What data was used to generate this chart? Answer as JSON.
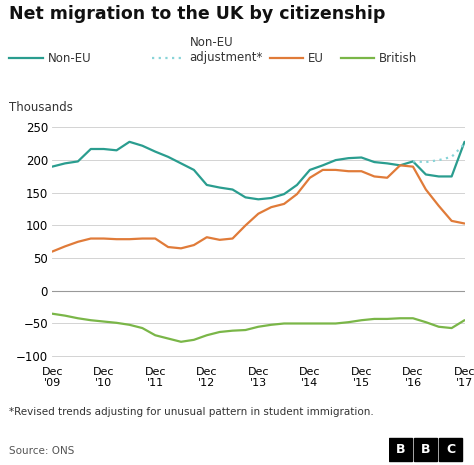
{
  "title": "Net migration to the UK by citizenship",
  "ylabel": "Thousands",
  "ylim": [
    -110,
    260
  ],
  "yticks": [
    -100,
    -50,
    0,
    50,
    100,
    150,
    200,
    250
  ],
  "footnote": "*Revised trends adjusting for unusual pattern in student immigration.",
  "source": "Source: ONS",
  "colors": {
    "non_eu": "#2a9d8f",
    "non_eu_adj": "#88d4d8",
    "eu": "#e07b39",
    "british": "#7ab648"
  },
  "x_labels": [
    "Dec\n'09",
    "Dec\n'10",
    "Dec\n'11",
    "Dec\n'12",
    "Dec\n'13",
    "Dec\n'14",
    "Dec\n'15",
    "Dec\n'16",
    "Dec\n'17"
  ],
  "x_positions": [
    0,
    4,
    8,
    12,
    16,
    20,
    24,
    28,
    32
  ],
  "non_eu": [
    190,
    195,
    198,
    217,
    217,
    215,
    228,
    222,
    213,
    205,
    195,
    185,
    162,
    158,
    155,
    143,
    140,
    142,
    148,
    162,
    185,
    192,
    200,
    203,
    204,
    197,
    195,
    192,
    198,
    178,
    175,
    175,
    228
  ],
  "non_eu_adj": [
    null,
    null,
    null,
    null,
    null,
    null,
    null,
    null,
    null,
    null,
    null,
    null,
    null,
    null,
    null,
    null,
    null,
    null,
    null,
    null,
    null,
    null,
    null,
    null,
    null,
    null,
    null,
    null,
    198,
    197,
    200,
    205,
    225
  ],
  "eu": [
    60,
    68,
    75,
    80,
    80,
    79,
    79,
    80,
    80,
    67,
    65,
    70,
    82,
    78,
    80,
    100,
    118,
    128,
    133,
    148,
    173,
    185,
    185,
    183,
    183,
    175,
    173,
    192,
    190,
    155,
    130,
    107,
    103
  ],
  "british": [
    -35,
    -38,
    -42,
    -45,
    -47,
    -49,
    -52,
    -57,
    -68,
    -73,
    -78,
    -75,
    -68,
    -63,
    -61,
    -60,
    -55,
    -52,
    -50,
    -50,
    -50,
    -50,
    -50,
    -48,
    -45,
    -43,
    -43,
    -42,
    -42,
    -48,
    -55,
    -57,
    -45
  ],
  "background_color": "#ffffff",
  "grid_color": "#cccccc",
  "zero_line_color": "#999999"
}
